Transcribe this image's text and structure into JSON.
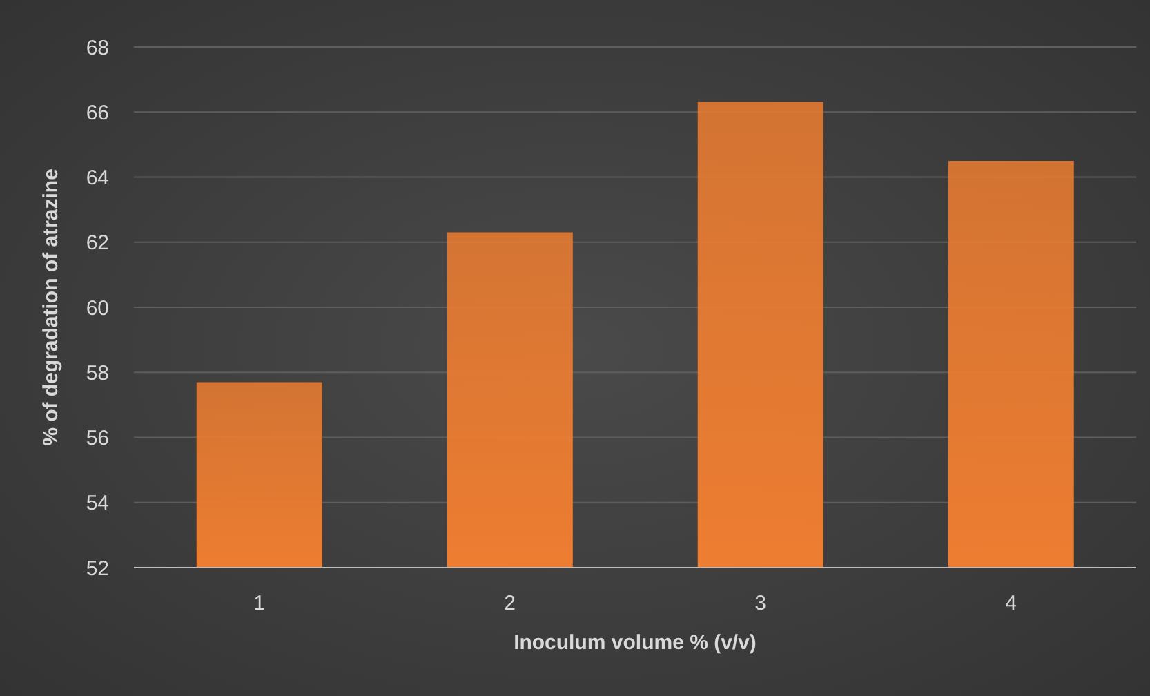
{
  "chart_data": {
    "type": "bar",
    "xlabel": "Inoculum volume % (v/v)",
    "ylabel": "% of degradation of atrazine",
    "categories": [
      "1",
      "2",
      "3",
      "4"
    ],
    "values": [
      57.7,
      62.3,
      66.3,
      64.5
    ],
    "color": "#ed7d31",
    "ylim": [
      52,
      68
    ],
    "yticks": [
      52,
      54,
      56,
      58,
      60,
      62,
      64,
      66,
      68
    ],
    "grid": "y"
  }
}
